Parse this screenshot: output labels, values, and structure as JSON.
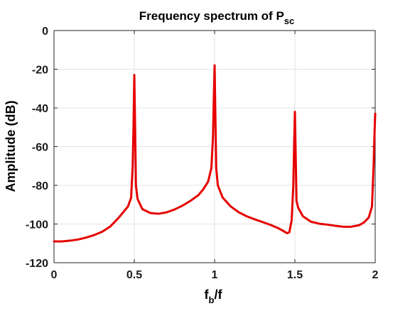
{
  "chart_data": {
    "type": "line",
    "title": "Frequency spectrum of P",
    "title_subscript": "sc",
    "xlabel": "f",
    "xlabel_subscript": "b",
    "xlabel_suffix": "/f",
    "ylabel": "Amplitude (dB)",
    "xlim": [
      0,
      2
    ],
    "ylim": [
      -120,
      0
    ],
    "xticks": [
      0,
      0.5,
      1,
      1.5,
      2
    ],
    "xtick_labels": [
      "0",
      "0.5",
      "1",
      "1.5",
      "2"
    ],
    "yticks": [
      0,
      -20,
      -40,
      -60,
      -80,
      -100,
      -120
    ],
    "ytick_labels": [
      "0",
      "-20",
      "-40",
      "-60",
      "-80",
      "-100",
      "-120"
    ],
    "grid": true,
    "series": [
      {
        "color": "#e60000",
        "x": [
          0,
          0.05,
          0.1,
          0.15,
          0.2,
          0.25,
          0.3,
          0.35,
          0.4,
          0.43,
          0.46,
          0.48,
          0.49,
          0.495,
          0.5,
          0.505,
          0.51,
          0.52,
          0.55,
          0.6,
          0.65,
          0.7,
          0.75,
          0.8,
          0.85,
          0.9,
          0.93,
          0.96,
          0.98,
          0.99,
          0.995,
          1.0,
          1.005,
          1.01,
          1.02,
          1.05,
          1.1,
          1.15,
          1.2,
          1.25,
          1.3,
          1.35,
          1.4,
          1.43,
          1.45,
          1.465,
          1.48,
          1.49,
          1.495,
          1.5,
          1.505,
          1.51,
          1.52,
          1.55,
          1.6,
          1.65,
          1.7,
          1.75,
          1.8,
          1.85,
          1.9,
          1.93,
          1.96,
          1.98,
          1.99,
          1.995,
          2.0
        ],
        "y": [
          -109,
          -109,
          -108.6,
          -108,
          -107,
          -105.7,
          -104,
          -101.3,
          -97,
          -94,
          -91,
          -86.5,
          -70,
          -50,
          -23,
          -50,
          -80,
          -87,
          -92.3,
          -94.3,
          -94.7,
          -94,
          -92.5,
          -90.5,
          -88,
          -85,
          -82,
          -78,
          -71,
          -55,
          -35,
          -18,
          -45,
          -71,
          -80,
          -86.3,
          -90.9,
          -93.9,
          -96,
          -97.6,
          -99,
          -100.5,
          -102.3,
          -103.7,
          -104.7,
          -104.3,
          -98,
          -80,
          -60,
          -42,
          -65,
          -88,
          -91.5,
          -96,
          -98.8,
          -99.8,
          -100.3,
          -100.9,
          -101.4,
          -101.4,
          -100.6,
          -99.2,
          -96.6,
          -91,
          -70,
          -55,
          -43
        ]
      }
    ]
  }
}
